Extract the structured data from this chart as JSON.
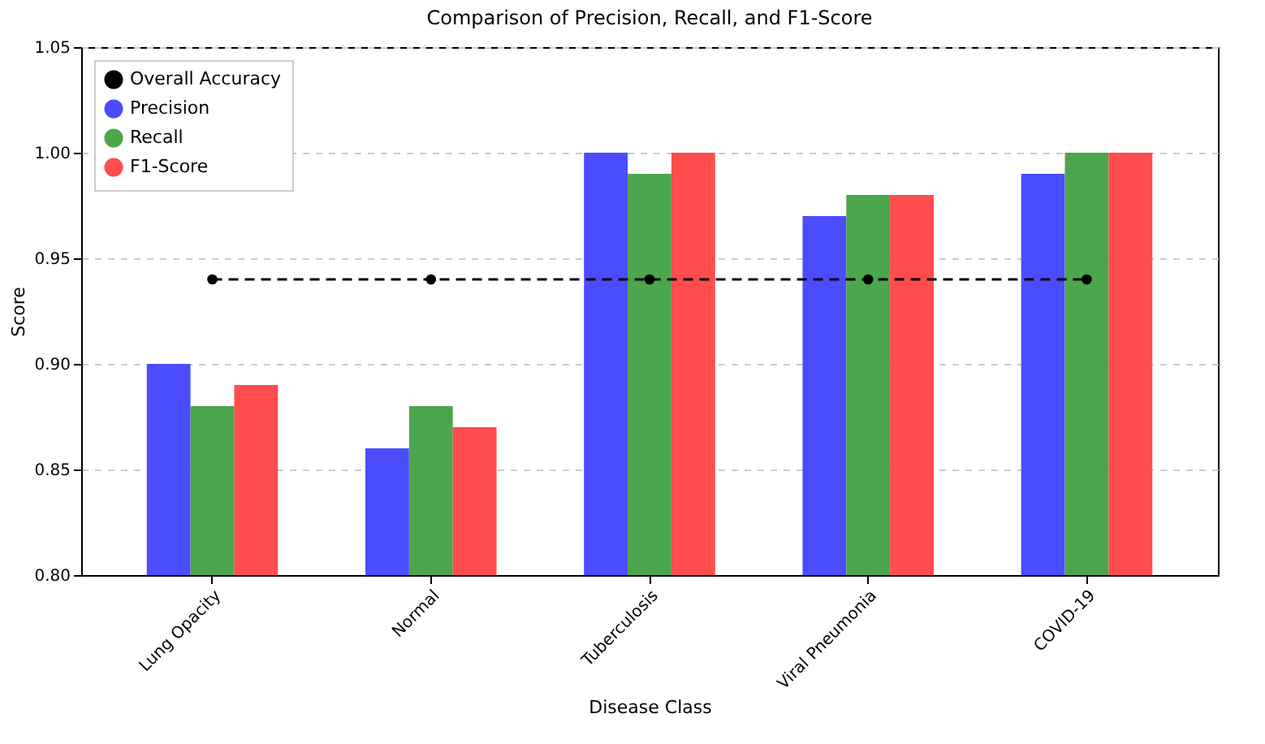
{
  "chart_data": {
    "type": "bar",
    "title": "Comparison of Precision, Recall, and F1-Score",
    "xlabel": "Disease Class",
    "ylabel": "Score",
    "categories": [
      "Lung Opacity",
      "Normal",
      "Tuberculosis",
      "Viral Pneumonia",
      "COVID-19"
    ],
    "series": [
      {
        "name": "Overall Accuracy",
        "type": "line",
        "color": "#000000",
        "values": [
          0.94,
          0.94,
          0.94,
          0.94,
          0.94
        ]
      },
      {
        "name": "Precision",
        "color": "#4c4cff",
        "values": [
          0.9,
          0.86,
          1.0,
          0.97,
          0.99
        ]
      },
      {
        "name": "Recall",
        "color": "#4ca64c",
        "values": [
          0.88,
          0.88,
          0.99,
          0.98,
          1.0
        ]
      },
      {
        "name": "F1-Score",
        "color": "#ff4c4c",
        "values": [
          0.89,
          0.87,
          1.0,
          0.98,
          1.0
        ]
      }
    ],
    "ylim": [
      0.8,
      1.05
    ],
    "yticks": [
      {
        "value": 0.8,
        "label": "0.80"
      },
      0.85,
      {
        "value": 0.9,
        "label": "0.90"
      },
      0.95,
      {
        "value": 1,
        "label": "1.00"
      },
      1.05
    ],
    "grid": "y",
    "legend": "top left",
    "marker": "circle",
    "line_style": "dashed"
  }
}
